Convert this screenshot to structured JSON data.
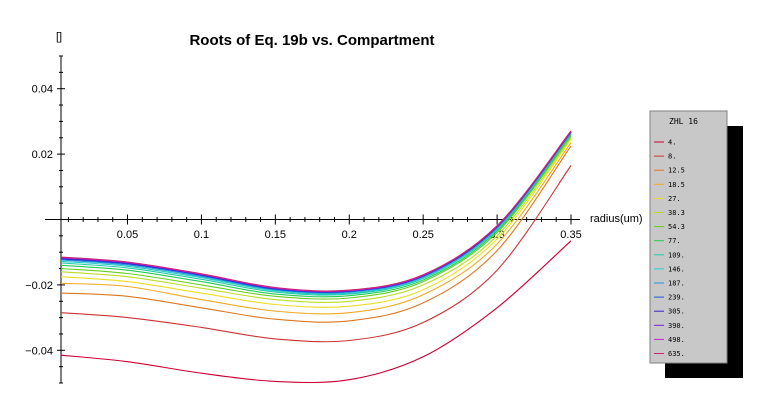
{
  "chart_data": {
    "type": "line",
    "title": "Roots of Eq. 19b vs. Compartment",
    "xlabel": "radius(um)",
    "ylabel": "[]",
    "xlim": [
      0.005,
      0.35
    ],
    "ylim": [
      -0.05,
      0.05
    ],
    "x_ticks": [
      0.05,
      0.1,
      0.15,
      0.2,
      0.25,
      0.3,
      0.35
    ],
    "y_ticks": [
      0.04,
      0.02,
      -0.02,
      -0.04
    ],
    "x_tick_labels": [
      "0.05",
      "0.1",
      "0.15",
      "0.2",
      "0.25",
      "0.3",
      "0.35"
    ],
    "y_tick_labels": [
      "0.04",
      "0.02",
      "−0.02",
      "−0.04"
    ],
    "grid": false,
    "legend": {
      "title": "ZHL  16",
      "placement": "right",
      "entries": [
        "4.",
        "8.",
        "12.5",
        "18.5",
        "27.",
        "38.3",
        "54.3",
        "77.",
        "109.",
        "146.",
        "187.",
        "239.",
        "305.",
        "390.",
        "498.",
        "635."
      ]
    },
    "series": [
      {
        "name": "4.",
        "color": "#cc0033",
        "x": [
          0.005,
          0.05,
          0.1,
          0.15,
          0.2,
          0.25,
          0.3,
          0.35
        ],
        "y": [
          -0.0415,
          -0.0435,
          -0.047,
          -0.0495,
          -0.049,
          -0.042,
          -0.027,
          -0.0065
        ]
      },
      {
        "name": "8.",
        "color": "#cc3333",
        "x": [
          0.005,
          0.05,
          0.1,
          0.15,
          0.2,
          0.25,
          0.3,
          0.35
        ],
        "y": [
          -0.0285,
          -0.03,
          -0.033,
          -0.0365,
          -0.037,
          -0.0315,
          -0.0155,
          0.0165
        ]
      },
      {
        "name": "12.5",
        "color": "#dd7722",
        "x": [
          0.005,
          0.05,
          0.1,
          0.15,
          0.2,
          0.25,
          0.3,
          0.35
        ],
        "y": [
          -0.0225,
          -0.0235,
          -0.027,
          -0.0305,
          -0.031,
          -0.0255,
          -0.0095,
          0.0225
        ]
      },
      {
        "name": "18.5",
        "color": "#eeaa22",
        "x": [
          0.005,
          0.05,
          0.1,
          0.15,
          0.2,
          0.25,
          0.3,
          0.35
        ],
        "y": [
          -0.0195,
          -0.0205,
          -0.0245,
          -0.028,
          -0.0285,
          -0.023,
          -0.0075,
          0.0235
        ]
      },
      {
        "name": "27.",
        "color": "#eedd22",
        "x": [
          0.005,
          0.05,
          0.1,
          0.15,
          0.2,
          0.25,
          0.3,
          0.35
        ],
        "y": [
          -0.0175,
          -0.019,
          -0.0225,
          -0.026,
          -0.0265,
          -0.0215,
          -0.006,
          0.0245
        ]
      },
      {
        "name": "38.3",
        "color": "#bbdd22",
        "x": [
          0.005,
          0.05,
          0.1,
          0.15,
          0.2,
          0.25,
          0.3,
          0.35
        ],
        "y": [
          -0.016,
          -0.0175,
          -0.021,
          -0.0245,
          -0.025,
          -0.02,
          -0.005,
          0.025
        ]
      },
      {
        "name": "54.3",
        "color": "#66cc22",
        "x": [
          0.005,
          0.05,
          0.1,
          0.15,
          0.2,
          0.25,
          0.3,
          0.35
        ],
        "y": [
          -0.015,
          -0.0165,
          -0.02,
          -0.0235,
          -0.024,
          -0.019,
          -0.004,
          0.0255
        ]
      },
      {
        "name": "77.",
        "color": "#22cc55",
        "x": [
          0.005,
          0.05,
          0.1,
          0.15,
          0.2,
          0.25,
          0.3,
          0.35
        ],
        "y": [
          -0.014,
          -0.0155,
          -0.019,
          -0.0228,
          -0.0233,
          -0.0185,
          -0.0035,
          0.026
        ]
      },
      {
        "name": "109.",
        "color": "#22ccaa",
        "x": [
          0.005,
          0.05,
          0.1,
          0.15,
          0.2,
          0.25,
          0.3,
          0.35
        ],
        "y": [
          -0.0133,
          -0.0148,
          -0.0183,
          -0.0222,
          -0.0228,
          -0.018,
          -0.003,
          0.0262
        ]
      },
      {
        "name": "146.",
        "color": "#22cccc",
        "x": [
          0.005,
          0.05,
          0.1,
          0.15,
          0.2,
          0.25,
          0.3,
          0.35
        ],
        "y": [
          -0.0128,
          -0.0143,
          -0.0178,
          -0.0218,
          -0.0225,
          -0.0177,
          -0.0027,
          0.0264
        ]
      },
      {
        "name": "187.",
        "color": "#2299dd",
        "x": [
          0.005,
          0.05,
          0.1,
          0.15,
          0.2,
          0.25,
          0.3,
          0.35
        ],
        "y": [
          -0.0124,
          -0.0139,
          -0.0174,
          -0.0215,
          -0.0222,
          -0.0175,
          -0.0025,
          0.0266
        ]
      },
      {
        "name": "239.",
        "color": "#2255dd",
        "x": [
          0.005,
          0.05,
          0.1,
          0.15,
          0.2,
          0.25,
          0.3,
          0.35
        ],
        "y": [
          -0.0121,
          -0.0136,
          -0.0171,
          -0.0213,
          -0.022,
          -0.0173,
          -0.0023,
          0.0267
        ]
      },
      {
        "name": "305.",
        "color": "#3322cc",
        "x": [
          0.005,
          0.05,
          0.1,
          0.15,
          0.2,
          0.25,
          0.3,
          0.35
        ],
        "y": [
          -0.0119,
          -0.0134,
          -0.0169,
          -0.0211,
          -0.0219,
          -0.0172,
          -0.0022,
          0.0268
        ]
      },
      {
        "name": "390.",
        "color": "#7722cc",
        "x": [
          0.005,
          0.05,
          0.1,
          0.15,
          0.2,
          0.25,
          0.3,
          0.35
        ],
        "y": [
          -0.0117,
          -0.0132,
          -0.0168,
          -0.021,
          -0.0218,
          -0.0171,
          -0.0021,
          0.0269
        ]
      },
      {
        "name": "498.",
        "color": "#cc22cc",
        "x": [
          0.005,
          0.05,
          0.1,
          0.15,
          0.2,
          0.25,
          0.3,
          0.35
        ],
        "y": [
          -0.0116,
          -0.0131,
          -0.0167,
          -0.0209,
          -0.0217,
          -0.017,
          -0.002,
          0.027
        ]
      },
      {
        "name": "635.",
        "color": "#cc2277",
        "x": [
          0.005,
          0.05,
          0.1,
          0.15,
          0.2,
          0.25,
          0.3,
          0.35
        ],
        "y": [
          -0.0115,
          -0.013,
          -0.0166,
          -0.0208,
          -0.0216,
          -0.0169,
          -0.0019,
          0.0271
        ]
      }
    ]
  }
}
